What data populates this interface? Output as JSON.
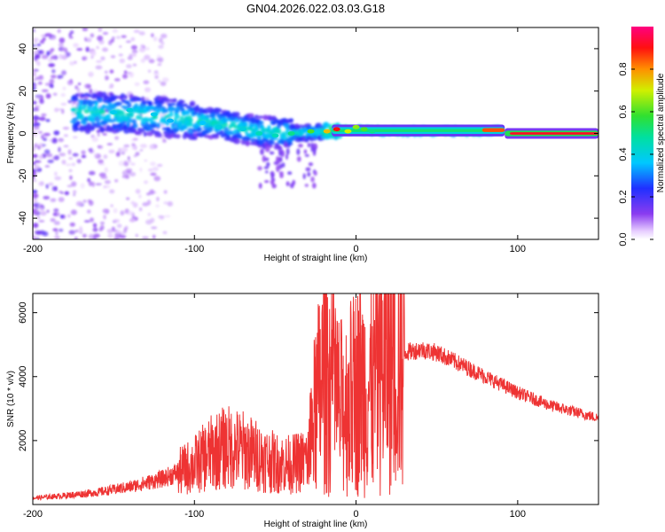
{
  "figure_title": "GN04.2026.022.03.03.G18",
  "chart_data": [
    {
      "type": "heatmap",
      "xlabel": "Height of straight line (km)",
      "ylabel": "Frequency (Hz)",
      "xlim": [
        -200,
        150
      ],
      "ylim": [
        -50,
        50
      ],
      "x_ticks": [
        -200,
        -100,
        0,
        100
      ],
      "x_tick_labels": [
        "-200",
        "-100",
        "0",
        "100"
      ],
      "y_ticks": [
        -40,
        -20,
        0,
        20,
        40
      ],
      "y_tick_labels": [
        "-40",
        "-20",
        "0",
        "20",
        "40"
      ],
      "colorbar": {
        "label": "Normalized spectral amplitude",
        "range": [
          0,
          1
        ],
        "ticks": [
          0,
          0.2,
          0.4,
          0.6,
          0.8
        ],
        "tick_labels": [
          "0.0",
          "0.2",
          "0.4",
          "0.6",
          "0.8"
        ],
        "colormap": "rainbow (purple-blue-cyan-green-yellow-red-magenta)"
      },
      "ridge": {
        "x": [
          -160,
          -140,
          -120,
          -100,
          -80,
          -60,
          -40,
          -20,
          0,
          20,
          40,
          60,
          80,
          90,
          100,
          120,
          150
        ],
        "frequency": [
          10,
          9,
          8,
          6,
          4,
          1,
          0,
          1,
          2,
          1,
          1,
          1,
          1,
          2,
          0,
          0,
          0
        ]
      },
      "grid": false
    },
    {
      "type": "line",
      "xlabel": "Height of straight line (km)",
      "ylabel": "SNR (10 * v/v)",
      "xlim": [
        -200,
        150
      ],
      "ylim": [
        0,
        6600
      ],
      "x_ticks": [
        -200,
        -100,
        0,
        100
      ],
      "x_tick_labels": [
        "-200",
        "-100",
        "0",
        "100"
      ],
      "y_ticks": [
        2000,
        4000,
        6000
      ],
      "y_tick_labels": [
        "2000",
        "4000",
        "6000"
      ],
      "color": "#ee3333",
      "series": [
        {
          "x": [
            -200,
            -180,
            -160,
            -140,
            -120,
            -110,
            -100,
            -90,
            -80,
            -70,
            -60,
            -50,
            -40,
            -30,
            -25,
            -20,
            -15,
            -10,
            -5,
            0,
            5,
            10,
            15,
            20,
            30,
            40,
            50,
            60,
            80,
            100,
            120,
            150
          ],
          "y": [
            200,
            280,
            380,
            550,
            800,
            1000,
            1250,
            1600,
            1800,
            1700,
            1500,
            1300,
            1250,
            1400,
            3000,
            4000,
            3800,
            3000,
            3200,
            3600,
            3700,
            3500,
            4200,
            4500,
            4750,
            4850,
            4750,
            4500,
            4000,
            3500,
            3100,
            2700
          ]
        }
      ],
      "grid": false
    }
  ]
}
